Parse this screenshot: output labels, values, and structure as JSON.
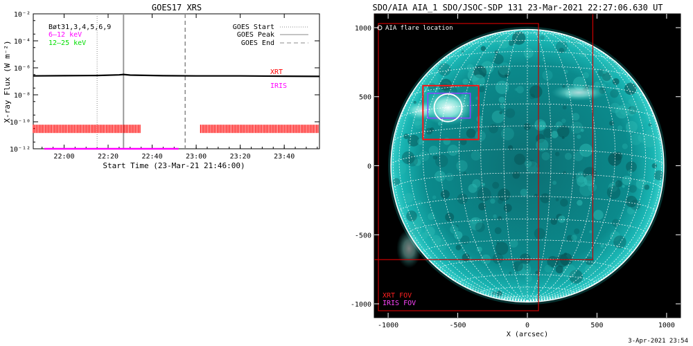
{
  "colors": {
    "background": "#ffffff",
    "axes": "#000000",
    "flux": "#000000",
    "xrt": "#ff0000",
    "iris": "#ff00ff",
    "channel_low": "#ff00ff",
    "channel_high": "#00dd00",
    "sun_disk": "#0a9a9a",
    "sun_bright": "#bff7f0",
    "grid": "#ffffff",
    "fov_xrt": "#cc0000",
    "fov_iris": "#8844ff"
  },
  "footer": {
    "timestamp": "3-Apr-2021 23:54"
  },
  "chart_data": [
    {
      "type": "line",
      "title": "GOES17 XRS",
      "xlabel": "Start Time (23-Mar-21 21:46:00)",
      "ylabel": "X-ray Flux (W m⁻²)",
      "xlim": [
        "21:46",
        "23:56"
      ],
      "ylim": [
        1e-12,
        0.01
      ],
      "log_y": true,
      "grid": false,
      "xticks": [
        "22:00",
        "22:20",
        "22:40",
        "23:00",
        "23:20",
        "23:40"
      ],
      "yticks": [
        "10⁻¹²",
        "10⁻¹⁰",
        "10⁻⁸",
        "10⁻⁶",
        "10⁻⁴",
        "10⁻²"
      ],
      "legend_top_left": [
        "Bøt31,3,4,5,6,9",
        "6–12 keV",
        "12–25 keV"
      ],
      "legend_top_right": [
        "GOES Start",
        "GOES Peak",
        "GOES End"
      ],
      "events": {
        "goes_start": "22:15",
        "goes_peak": "22:27",
        "goes_end": "22:55"
      },
      "series": [
        {
          "name": "6–12 keV",
          "x": [
            "21:46",
            "22:00",
            "22:15",
            "22:25",
            "22:27",
            "22:30",
            "22:45",
            "23:00",
            "23:20",
            "23:40",
            "23:56"
          ],
          "y": [
            2.5e-07,
            2.6e-07,
            2.7e-07,
            3e-07,
            3.2e-07,
            2.9e-07,
            2.6e-07,
            2.5e-07,
            2.5e-07,
            2.4e-07,
            2.3e-07
          ]
        }
      ],
      "observations": [
        {
          "name": "XRT",
          "level": 3e-11,
          "intervals": [
            [
              "21:46",
              "22:35"
            ],
            [
              "23:02",
              "23:56"
            ]
          ]
        },
        {
          "name": "IRIS",
          "level": 1e-12,
          "intervals": [
            [
              "21:51",
              "22:52"
            ]
          ]
        }
      ],
      "labels": {
        "xrt": "XRT",
        "iris": "IRIS"
      }
    },
    {
      "type": "scatter",
      "title": "SDO/AIA AIA_1 SDO/JSOC-SDP 131 23-Mar-2021 22:27:06.630 UT",
      "xlabel": "X (arcsec)",
      "ylabel": "",
      "xlim": [
        -1100,
        1100
      ],
      "ylim": [
        -1100,
        1100
      ],
      "xticks": [
        "-1000",
        "-500",
        "0",
        "500",
        "1000"
      ],
      "yticks": [
        "-1000",
        "-500",
        "0",
        "500",
        "1000"
      ],
      "legend": "AIA flare location",
      "flare_location": {
        "x": -570,
        "y": 420
      },
      "solar_radius_arcsec": 980,
      "fov": {
        "xrt_main": {
          "x1": -1070,
          "y1": -1050,
          "x2": 80,
          "y2": 1030
        },
        "xrt_wide": {
          "x1": -1100,
          "y1": -680,
          "x2": 470,
          "y2": 1100
        },
        "xrt_zoom": {
          "x1": -750,
          "y1": 190,
          "x2": -350,
          "y2": 580
        },
        "iris": {
          "x1": -715,
          "y1": 345,
          "x2": -410,
          "y2": 525
        }
      },
      "fov_labels": [
        "XRT FOV",
        "IRIS FOV"
      ]
    }
  ]
}
